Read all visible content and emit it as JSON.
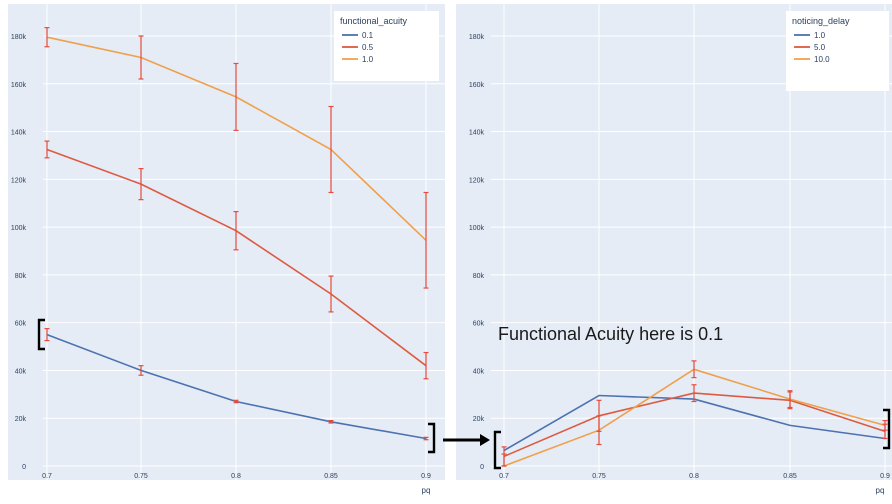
{
  "annotation": {
    "text": "Functional Acuity here is 0.1"
  },
  "colors": {
    "plot_bg": "#E5ECF6",
    "grid": "#FFFFFF",
    "tick_text": "#2A3F5F",
    "error_bar": "#E74C3C",
    "arrow": "#000000",
    "bracket": "#000000"
  },
  "chart_data": [
    {
      "type": "line",
      "xlabel": "pq",
      "ylabel": "",
      "x": [
        0.7,
        0.75,
        0.8,
        0.85,
        0.9
      ],
      "x_tick_labels": [
        "0.7",
        "0.75",
        "0.8",
        "0.85",
        "0.9"
      ],
      "ylim": [
        0,
        190000
      ],
      "y_ticks": [
        0,
        20000,
        40000,
        60000,
        80000,
        100000,
        120000,
        140000,
        160000,
        180000
      ],
      "y_tick_labels": [
        "0",
        "20k",
        "40k",
        "60k",
        "80k",
        "100k",
        "120k",
        "140k",
        "160k",
        "180k"
      ],
      "grid": true,
      "legend": {
        "title": "functional_acuity",
        "placement": "top-right"
      },
      "series": [
        {
          "name": "0.1",
          "color": "#4C72B0",
          "values": [
            55000,
            40000,
            27000,
            18500,
            11500
          ],
          "error": [
            2500,
            2000,
            500,
            500,
            500
          ]
        },
        {
          "name": "0.5",
          "color": "#DD5A40",
          "values": [
            132500,
            118000,
            98500,
            72000,
            42000
          ],
          "error": [
            3500,
            6500,
            8000,
            7500,
            5500
          ]
        },
        {
          "name": "1.0",
          "color": "#F0A04B",
          "values": [
            179500,
            171000,
            154500,
            132500,
            94500
          ],
          "error": [
            4000,
            9000,
            14000,
            18000,
            20000
          ]
        }
      ]
    },
    {
      "type": "line",
      "xlabel": "pq",
      "ylabel": "",
      "x": [
        0.7,
        0.75,
        0.8,
        0.85,
        0.9
      ],
      "x_tick_labels": [
        "0.7",
        "0.75",
        "0.8",
        "0.85",
        "0.9"
      ],
      "ylim": [
        0,
        190000
      ],
      "y_ticks": [
        0,
        20000,
        40000,
        60000,
        80000,
        100000,
        120000,
        140000,
        160000,
        180000
      ],
      "y_tick_labels": [
        "0",
        "20k",
        "40k",
        "60k",
        "80k",
        "100k",
        "120k",
        "140k",
        "160k",
        "180k"
      ],
      "grid": true,
      "legend": {
        "title": "noticing_delay",
        "placement": "top-right"
      },
      "series": [
        {
          "name": "1.0",
          "color": "#4C72B0",
          "values": [
            6500,
            29500,
            28000,
            17000,
            11500
          ],
          "error": [
            0,
            0,
            0,
            0,
            0
          ]
        },
        {
          "name": "5.0",
          "color": "#DD5A40",
          "values": [
            4000,
            21000,
            30500,
            27500,
            14500
          ],
          "error": [
            4000,
            6500,
            3500,
            3500,
            3000
          ]
        },
        {
          "name": "10.0",
          "color": "#F0A04B",
          "values": [
            0,
            15000,
            40500,
            28000,
            17000
          ],
          "error": [
            5000,
            6000,
            3500,
            3500,
            2000
          ]
        }
      ]
    }
  ]
}
